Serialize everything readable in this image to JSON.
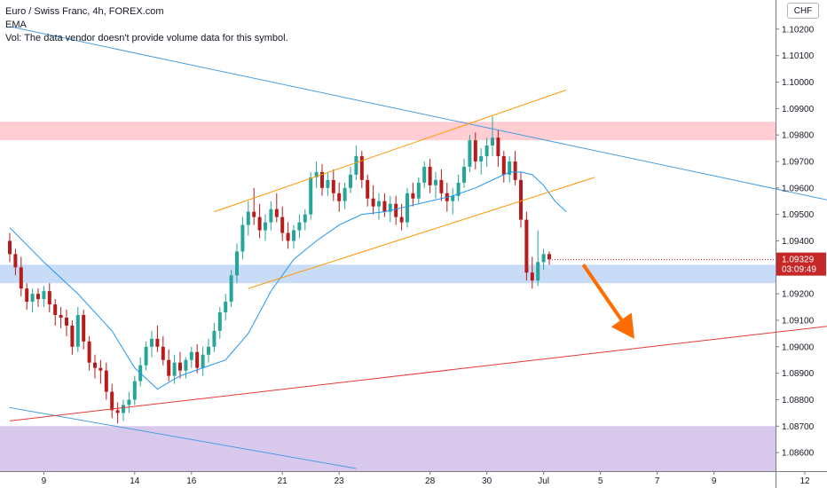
{
  "legend": {
    "symbol": "Euro / Swiss Franc, 4h, FOREX.com",
    "ema": "EMA",
    "vol": "Vol: The data vendor doesn't provide volume data for this symbol."
  },
  "currency_button": "CHF",
  "colors": {
    "up": "#26a69a",
    "down": "#b71c1c",
    "ema": "#2196f3",
    "trend_blue": "#4a9ee0",
    "channel": "#ff9800",
    "support_red": "#e53935",
    "zone_red": "#ffcdd2",
    "zone_blue": "#c9dcf7",
    "zone_purple": "#d8c8ec",
    "arrow": "#ff6d00",
    "price_tag": "#c62828"
  },
  "chart_data": {
    "type": "candlestick",
    "yaxis": {
      "ylim": [
        1.0853,
        1.1031
      ],
      "ticks": [
        "1.10200",
        "1.10100",
        "1.10000",
        "1.09900",
        "1.09800",
        "1.09700",
        "1.09600",
        "1.09500",
        "1.09400",
        "1.09200",
        "1.09100",
        "1.09000",
        "1.08900",
        "1.08800",
        "1.08700",
        "1.08600"
      ],
      "tick_values": [
        1.102,
        1.101,
        1.1,
        1.099,
        1.098,
        1.097,
        1.096,
        1.095,
        1.094,
        1.092,
        1.091,
        1.09,
        1.089,
        1.088,
        1.087,
        1.086
      ]
    },
    "xaxis": {
      "ticks": [
        "9",
        "14",
        "16",
        "21",
        "23",
        "28",
        "30",
        "Jul",
        "5",
        "7",
        "9",
        "12"
      ],
      "tick_bars": [
        6,
        22,
        32,
        48,
        58,
        74,
        84,
        94,
        104,
        114,
        124,
        140
      ]
    },
    "price_tag": {
      "price": "1.09329",
      "countdown": "03:09:49",
      "value": 1.09329
    },
    "zones": [
      {
        "name": "resistance-zone",
        "from": 1.0978,
        "to": 1.0985
      },
      {
        "name": "support-zone",
        "from": 1.0924,
        "to": 1.0931
      },
      {
        "name": "demand-zone",
        "from": 1.0853,
        "to": 1.087
      }
    ],
    "trendlines": [
      {
        "name": "descending-trendline-upper",
        "color": "trend_blue",
        "p1": [
          0,
          1.1021
        ],
        "p2": [
          145,
          1.0955
        ]
      },
      {
        "name": "descending-trendline-lower",
        "color": "trend_blue",
        "p1": [
          0,
          1.0877
        ],
        "p2": [
          61,
          1.0854
        ]
      },
      {
        "name": "ascending-support-line",
        "color": "support_red",
        "p1": [
          0,
          1.0872
        ],
        "p2": [
          145,
          1.0908
        ]
      },
      {
        "name": "channel-upper-line",
        "color": "channel",
        "p1": [
          36,
          1.0951
        ],
        "p2": [
          98,
          1.0997
        ]
      },
      {
        "name": "channel-lower-line",
        "color": "channel",
        "p1": [
          42,
          1.0922
        ],
        "p2": [
          103,
          1.0964
        ]
      }
    ],
    "arrow": {
      "from": [
        101,
        1.0931
      ],
      "to": [
        110,
        1.0903
      ]
    },
    "candles": [
      [
        1.094,
        1.0943,
        1.0932,
        1.0935
      ],
      [
        1.0935,
        1.0937,
        1.0927,
        1.093
      ],
      [
        1.093,
        1.0934,
        1.0919,
        1.0922
      ],
      [
        1.0922,
        1.0924,
        1.0914,
        1.0917
      ],
      [
        1.0917,
        1.0922,
        1.0913,
        1.092
      ],
      [
        1.092,
        1.0922,
        1.0915,
        1.0918
      ],
      [
        1.0918,
        1.0923,
        1.0915,
        1.0921
      ],
      [
        1.0921,
        1.0924,
        1.0913,
        1.0916
      ],
      [
        1.0916,
        1.0918,
        1.0908,
        1.0912
      ],
      [
        1.0912,
        1.0915,
        1.0907,
        1.0911
      ],
      [
        1.0911,
        1.0914,
        1.0904,
        1.0908
      ],
      [
        1.0908,
        1.091,
        1.0897,
        1.09
      ],
      [
        1.09,
        1.0915,
        1.0898,
        1.0912
      ],
      [
        1.0912,
        1.0914,
        1.0899,
        1.0902
      ],
      [
        1.0902,
        1.0904,
        1.0891,
        1.0894
      ],
      [
        1.0894,
        1.0897,
        1.0888,
        1.0892
      ],
      [
        1.0892,
        1.0895,
        1.0886,
        1.0891
      ],
      [
        1.0891,
        1.0894,
        1.088,
        1.0883
      ],
      [
        1.0883,
        1.0886,
        1.0873,
        1.0876
      ],
      [
        1.0876,
        1.0879,
        1.0871,
        1.0875
      ],
      [
        1.0875,
        1.088,
        1.0872,
        1.0878
      ],
      [
        1.0878,
        1.0883,
        1.0875,
        1.088
      ],
      [
        1.088,
        1.0889,
        1.0878,
        1.0887
      ],
      [
        1.0887,
        1.0896,
        1.0885,
        1.0893
      ],
      [
        1.0893,
        1.0902,
        1.0891,
        1.09
      ],
      [
        1.09,
        1.0906,
        1.0896,
        1.0903
      ],
      [
        1.0903,
        1.0908,
        1.0898,
        1.09
      ],
      [
        1.09,
        1.0904,
        1.0893,
        1.0895
      ],
      [
        1.0895,
        1.0899,
        1.0887,
        1.0889
      ],
      [
        1.0889,
        1.0897,
        1.0886,
        1.0894
      ],
      [
        1.0894,
        1.0898,
        1.0888,
        1.0891
      ],
      [
        1.0891,
        1.0896,
        1.0888,
        1.0895
      ],
      [
        1.0895,
        1.09,
        1.0892,
        1.0898
      ],
      [
        1.0898,
        1.0901,
        1.089,
        1.0892
      ],
      [
        1.0892,
        1.09,
        1.0889,
        1.0897
      ],
      [
        1.0897,
        1.0903,
        1.0894,
        1.09
      ],
      [
        1.09,
        1.0909,
        1.0898,
        1.0906
      ],
      [
        1.0906,
        1.0915,
        1.0903,
        1.0913
      ],
      [
        1.0913,
        1.092,
        1.091,
        1.0917
      ],
      [
        1.0917,
        1.0929,
        1.0915,
        1.0927
      ],
      [
        1.0927,
        1.0939,
        1.0924,
        1.0936
      ],
      [
        1.0936,
        1.0949,
        1.0933,
        1.0946
      ],
      [
        1.0946,
        1.0955,
        1.0942,
        1.0951
      ],
      [
        1.0951,
        1.096,
        1.0946,
        1.0949
      ],
      [
        1.0949,
        1.0954,
        1.0941,
        1.0944
      ],
      [
        1.0944,
        1.095,
        1.094,
        1.0947
      ],
      [
        1.0947,
        1.0955,
        1.0944,
        1.0952
      ],
      [
        1.0952,
        1.0958,
        1.0947,
        1.0949
      ],
      [
        1.0949,
        1.0953,
        1.094,
        1.0943
      ],
      [
        1.0943,
        1.0947,
        1.0937,
        1.094
      ],
      [
        1.094,
        1.0946,
        1.0937,
        1.0944
      ],
      [
        1.0944,
        1.095,
        1.0941,
        1.0947
      ],
      [
        1.0947,
        1.0952,
        1.0944,
        1.095
      ],
      [
        1.095,
        1.0966,
        1.0948,
        1.0964
      ],
      [
        1.0964,
        1.097,
        1.096,
        1.0966
      ],
      [
        1.0966,
        1.0969,
        1.0957,
        1.096
      ],
      [
        1.096,
        1.0966,
        1.0957,
        1.0963
      ],
      [
        1.0963,
        1.0967,
        1.0955,
        1.0958
      ],
      [
        1.0958,
        1.0962,
        1.0951,
        1.0955
      ],
      [
        1.0955,
        1.0962,
        1.0952,
        1.096
      ],
      [
        1.096,
        1.0968,
        1.0958,
        1.0965
      ],
      [
        1.0965,
        1.0976,
        1.0963,
        1.0972
      ],
      [
        1.0972,
        1.0974,
        1.096,
        1.0963
      ],
      [
        1.0963,
        1.0965,
        1.0953,
        1.0956
      ],
      [
        1.0956,
        1.0961,
        1.095,
        1.0953
      ],
      [
        1.0953,
        1.0958,
        1.0948,
        1.0955
      ],
      [
        1.0955,
        1.0958,
        1.0949,
        1.0951
      ],
      [
        1.0951,
        1.0957,
        1.0947,
        1.0954
      ],
      [
        1.0954,
        1.0957,
        1.0946,
        1.0949
      ],
      [
        1.0949,
        1.0954,
        1.0944,
        1.0947
      ],
      [
        1.0947,
        1.096,
        1.0945,
        1.0958
      ],
      [
        1.0958,
        1.0962,
        1.0953,
        1.0956
      ],
      [
        1.0956,
        1.0964,
        1.0954,
        1.0962
      ],
      [
        1.0962,
        1.097,
        1.096,
        1.0968
      ],
      [
        1.0968,
        1.0971,
        1.0958,
        1.0961
      ],
      [
        1.0961,
        1.0966,
        1.0956,
        1.0963
      ],
      [
        1.0963,
        1.0967,
        1.0955,
        1.0958
      ],
      [
        1.0958,
        1.0962,
        1.0951,
        1.0955
      ],
      [
        1.0955,
        1.096,
        1.095,
        1.0957
      ],
      [
        1.0957,
        1.0965,
        1.0955,
        1.0962
      ],
      [
        1.0962,
        1.0971,
        1.096,
        1.0968
      ],
      [
        1.0968,
        1.098,
        1.0966,
        1.0978
      ],
      [
        1.0978,
        1.0981,
        1.0967,
        1.097
      ],
      [
        1.097,
        1.0975,
        1.0965,
        1.0972
      ],
      [
        1.0972,
        1.0979,
        1.0968,
        1.0976
      ],
      [
        1.0976,
        1.0987,
        1.0972,
        1.0979
      ],
      [
        1.0979,
        1.0982,
        1.0968,
        1.0972
      ],
      [
        1.0972,
        1.0974,
        1.0962,
        1.0965
      ],
      [
        1.0965,
        1.0972,
        1.0962,
        1.097
      ],
      [
        1.097,
        1.0974,
        1.0961,
        1.0963
      ],
      [
        1.0963,
        1.0966,
        1.0945,
        1.0948
      ],
      [
        1.0948,
        1.0951,
        1.0925,
        1.0928
      ],
      [
        1.0928,
        1.0934,
        1.0922,
        1.0925
      ],
      [
        1.0925,
        1.0944,
        1.0923,
        1.0932
      ],
      [
        1.0932,
        1.0937,
        1.0929,
        1.0935
      ],
      [
        1.0935,
        1.0936,
        1.0931,
        1.0933
      ]
    ],
    "ema": [
      [
        0,
        1.0945
      ],
      [
        6,
        1.0932
      ],
      [
        12,
        1.092
      ],
      [
        18,
        1.0906
      ],
      [
        22,
        1.0892
      ],
      [
        26,
        1.0884
      ],
      [
        30,
        1.0889
      ],
      [
        34,
        1.0892
      ],
      [
        38,
        1.0895
      ],
      [
        42,
        1.0905
      ],
      [
        46,
        1.0921
      ],
      [
        50,
        1.0933
      ],
      [
        54,
        1.094
      ],
      [
        58,
        1.0946
      ],
      [
        62,
        1.095
      ],
      [
        66,
        1.0951
      ],
      [
        70,
        1.0953
      ],
      [
        74,
        1.0955
      ],
      [
        78,
        1.0957
      ],
      [
        82,
        1.096
      ],
      [
        86,
        1.0964
      ],
      [
        88,
        1.0966
      ],
      [
        90,
        1.0966
      ],
      [
        92,
        1.0965
      ],
      [
        94,
        1.0961
      ],
      [
        96,
        1.0955
      ],
      [
        98,
        1.0951
      ]
    ]
  }
}
